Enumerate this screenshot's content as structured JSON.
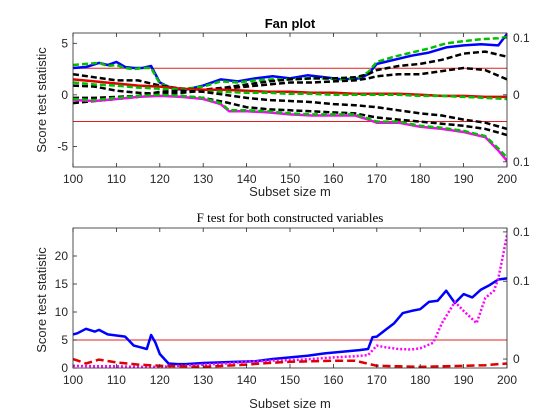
{
  "chart_data": [
    {
      "type": "line",
      "title": "Fan plot",
      "xlabel": "Subset size m",
      "ylabel": "Score test statistic",
      "xlim": [
        100,
        200
      ],
      "ylim": [
        -7,
        6
      ],
      "xticks": [
        100,
        110,
        120,
        130,
        140,
        150,
        160,
        170,
        180,
        190,
        200
      ],
      "yticks": [
        -5,
        0,
        5
      ],
      "grid": false,
      "bands": [
        2.58,
        -2.58
      ],
      "band_color": "#e02020",
      "right_labels": [
        {
          "text": "0.1",
          "y": 5.5
        },
        {
          "text": "0",
          "y": 0
        },
        {
          "text": "0.1",
          "y": -6.5
        }
      ],
      "series": [
        {
          "color": "#0000ff",
          "dash": "",
          "width": 2.5,
          "x": [
            100,
            103,
            106,
            108,
            110,
            112,
            114,
            116,
            118,
            120,
            123,
            126,
            130,
            134,
            138,
            142,
            146,
            150,
            154,
            158,
            162,
            166,
            168,
            170,
            174,
            178,
            182,
            186,
            190,
            194,
            198,
            200
          ],
          "y": [
            2.6,
            2.7,
            3.1,
            2.9,
            3.2,
            2.7,
            2.6,
            2.6,
            2.8,
            1.2,
            0.6,
            0.5,
            0.9,
            1.5,
            1.3,
            1.6,
            1.8,
            1.6,
            1.9,
            1.7,
            1.5,
            1.6,
            2.0,
            3.0,
            3.4,
            3.8,
            4.1,
            4.6,
            4.8,
            4.9,
            4.8,
            5.9
          ]
        },
        {
          "color": "#00c000",
          "dash": "6,3",
          "width": 2.5,
          "x": [
            100,
            103,
            106,
            108,
            110,
            112,
            114,
            116,
            118,
            120,
            123,
            126,
            130,
            134,
            138,
            142,
            146,
            150,
            154,
            158,
            162,
            166,
            168,
            170,
            174,
            178,
            182,
            186,
            190,
            194,
            198,
            200
          ],
          "y": [
            2.9,
            3.0,
            3.1,
            2.8,
            2.9,
            2.6,
            2.5,
            2.6,
            2.6,
            1.1,
            0.7,
            0.6,
            0.8,
            1.3,
            1.2,
            1.4,
            1.5,
            1.5,
            1.6,
            1.6,
            1.5,
            1.7,
            2.2,
            3.2,
            3.7,
            4.1,
            4.5,
            5.0,
            5.2,
            5.4,
            5.5,
            5.6
          ]
        },
        {
          "color": "#000000",
          "dash": "6,3",
          "width": 2.5,
          "x": [
            100,
            105,
            110,
            115,
            120,
            125,
            130,
            135,
            140,
            145,
            150,
            155,
            160,
            165,
            168,
            170,
            175,
            180,
            185,
            190,
            195,
            200
          ],
          "y": [
            2.0,
            1.7,
            1.4,
            1.4,
            0.9,
            0.6,
            0.5,
            0.7,
            1.0,
            1.3,
            1.5,
            1.6,
            1.6,
            1.7,
            2.0,
            2.4,
            2.8,
            3.0,
            3.4,
            4.0,
            4.2,
            3.7
          ]
        },
        {
          "color": "#000000",
          "dash": "6,3",
          "width": 2.5,
          "x": [
            100,
            105,
            110,
            115,
            120,
            125,
            130,
            135,
            140,
            145,
            150,
            155,
            160,
            165,
            168,
            170,
            175,
            180,
            185,
            190,
            195,
            200
          ],
          "y": [
            0.9,
            0.8,
            0.4,
            0.2,
            0.1,
            0.2,
            0.4,
            0.6,
            0.8,
            1.0,
            1.2,
            1.2,
            1.3,
            1.4,
            1.6,
            1.8,
            2.0,
            2.0,
            2.3,
            2.6,
            2.4,
            1.5
          ]
        },
        {
          "color": "#e00000",
          "dash": "",
          "width": 2.5,
          "x": [
            100,
            105,
            110,
            115,
            120,
            125,
            130,
            135,
            140,
            145,
            150,
            155,
            160,
            165,
            170,
            175,
            180,
            185,
            190,
            195,
            200
          ],
          "y": [
            1.5,
            1.3,
            1.1,
            0.9,
            0.8,
            0.6,
            0.5,
            0.5,
            0.4,
            0.3,
            0.3,
            0.2,
            0.2,
            0.1,
            0.1,
            0.1,
            0.0,
            -0.1,
            -0.1,
            -0.2,
            -0.2
          ]
        },
        {
          "color": "#00c000",
          "dash": "6,3",
          "width": 2.5,
          "x": [
            100,
            105,
            110,
            115,
            120,
            125,
            130,
            135,
            140,
            145,
            150,
            155,
            160,
            165,
            170,
            175,
            180,
            185,
            190,
            195,
            200
          ],
          "y": [
            1.2,
            1.0,
            0.9,
            0.7,
            0.6,
            0.5,
            0.3,
            0.3,
            0.2,
            0.2,
            0.1,
            0.1,
            0.0,
            0.0,
            0.0,
            0.0,
            -0.1,
            -0.1,
            -0.2,
            -0.3,
            -0.4
          ]
        },
        {
          "color": "#000000",
          "dash": "6,3",
          "width": 2.5,
          "x": [
            100,
            105,
            110,
            115,
            120,
            125,
            130,
            135,
            140,
            145,
            150,
            155,
            160,
            165,
            170,
            175,
            180,
            185,
            190,
            195,
            200
          ],
          "y": [
            -0.3,
            -0.3,
            -0.2,
            -0.1,
            0.3,
            0.4,
            0.3,
            0.0,
            -0.3,
            -0.5,
            -0.6,
            -0.7,
            -0.9,
            -1.0,
            -1.2,
            -1.5,
            -1.8,
            -2.0,
            -2.4,
            -2.7,
            -3.3
          ]
        },
        {
          "color": "#000000",
          "dash": "6,3",
          "width": 2.5,
          "x": [
            100,
            105,
            110,
            115,
            120,
            125,
            130,
            135,
            140,
            145,
            150,
            155,
            160,
            165,
            170,
            175,
            180,
            185,
            190,
            195,
            200
          ],
          "y": [
            -0.8,
            -0.6,
            -0.4,
            -0.2,
            0.0,
            -0.1,
            -0.3,
            -0.7,
            -1.2,
            -1.4,
            -1.5,
            -1.6,
            -1.7,
            -1.8,
            -2.2,
            -2.4,
            -2.6,
            -2.8,
            -3.0,
            -3.3,
            -3.9
          ]
        },
        {
          "color": "#ff00ff",
          "dash": "",
          "width": 2.5,
          "x": [
            100,
            105,
            110,
            115,
            120,
            125,
            130,
            134,
            136,
            140,
            145,
            150,
            155,
            160,
            165,
            168,
            170,
            175,
            180,
            185,
            190,
            195,
            198,
            200
          ],
          "y": [
            -0.5,
            -0.6,
            -0.4,
            -0.2,
            -0.1,
            -0.2,
            -0.4,
            -0.9,
            -1.6,
            -1.6,
            -1.7,
            -1.9,
            -2.0,
            -2.0,
            -2.0,
            -2.4,
            -2.7,
            -2.7,
            -3.1,
            -3.3,
            -3.6,
            -4.1,
            -5.4,
            -6.4
          ]
        },
        {
          "color": "#00c000",
          "dash": "6,3",
          "width": 2.5,
          "x": [
            100,
            105,
            110,
            115,
            120,
            125,
            130,
            134,
            136,
            140,
            145,
            150,
            155,
            160,
            165,
            168,
            170,
            175,
            180,
            185,
            190,
            195,
            198,
            200
          ],
          "y": [
            -0.4,
            -0.5,
            -0.3,
            -0.1,
            0.0,
            -0.1,
            -0.3,
            -0.8,
            -1.5,
            -1.5,
            -1.6,
            -1.8,
            -1.9,
            -1.9,
            -1.9,
            -2.3,
            -2.6,
            -2.6,
            -3.0,
            -3.2,
            -3.5,
            -4.0,
            -5.2,
            -6.1
          ]
        }
      ]
    },
    {
      "type": "line",
      "title": "F test for both constructed variables",
      "xlabel": "Subset size m",
      "ylabel": "Score test statistic",
      "xlim": [
        100,
        200
      ],
      "ylim": [
        0,
        25
      ],
      "xticks": [
        100,
        110,
        120,
        130,
        140,
        150,
        160,
        170,
        180,
        190,
        200
      ],
      "yticks": [
        0,
        5,
        10,
        15,
        20
      ],
      "grid": false,
      "bands": [
        5.0
      ],
      "band_color": "#e02020",
      "right_labels": [
        {
          "text": "0.1",
          "y": 24.3
        },
        {
          "text": "0.1",
          "y": 15.5
        },
        {
          "text": "0",
          "y": 1.6
        }
      ],
      "series": [
        {
          "color": "#0000ff",
          "dash": "",
          "width": 2.5,
          "x": [
            100,
            101,
            103,
            105,
            106,
            108,
            110,
            112,
            114,
            116,
            117,
            118,
            119,
            120,
            122,
            124,
            126,
            130,
            134,
            138,
            142,
            146,
            150,
            154,
            158,
            162,
            166,
            168,
            169,
            170,
            172,
            174,
            176,
            178,
            180,
            182,
            184,
            186,
            188,
            190,
            192,
            194,
            196,
            198,
            200
          ],
          "y": [
            6.0,
            6.2,
            7.0,
            6.5,
            6.8,
            6.0,
            5.8,
            5.6,
            4.0,
            3.6,
            3.4,
            5.9,
            4.5,
            2.5,
            0.8,
            0.7,
            0.7,
            0.9,
            1.0,
            1.1,
            1.2,
            1.6,
            1.9,
            2.2,
            2.6,
            2.9,
            3.2,
            3.4,
            5.5,
            5.6,
            6.8,
            8.0,
            9.8,
            10.2,
            10.5,
            11.8,
            12.0,
            13.8,
            11.6,
            13.2,
            12.6,
            14.0,
            14.8,
            15.8,
            16.0
          ]
        },
        {
          "color": "#ff00ff",
          "dash": "2,2",
          "width": 2.5,
          "x": [
            100,
            105,
            110,
            115,
            120,
            125,
            130,
            135,
            140,
            145,
            150,
            155,
            160,
            165,
            168,
            170,
            172,
            175,
            178,
            180,
            183,
            185,
            188,
            190,
            193,
            195,
            197,
            198,
            199,
            200
          ],
          "y": [
            0.4,
            0.3,
            0.3,
            0.2,
            0.2,
            0.4,
            0.6,
            0.8,
            1.1,
            1.3,
            1.4,
            1.6,
            1.9,
            2.1,
            2.3,
            4.0,
            3.7,
            3.4,
            3.3,
            3.5,
            4.5,
            8.0,
            11.8,
            10.2,
            8.0,
            12.5,
            13.8,
            16.0,
            19.8,
            23.8
          ]
        },
        {
          "color": "#e00000",
          "dash": "8,4",
          "width": 2.5,
          "x": [
            100,
            103,
            106,
            110,
            115,
            120,
            125,
            130,
            135,
            140,
            145,
            150,
            155,
            160,
            165,
            170,
            175,
            180,
            185,
            190,
            195,
            200
          ],
          "y": [
            1.6,
            0.8,
            1.5,
            1.0,
            0.6,
            0.4,
            0.3,
            0.2,
            0.4,
            0.6,
            0.9,
            1.1,
            1.2,
            1.3,
            1.3,
            0.4,
            0.3,
            0.2,
            0.3,
            0.4,
            0.5,
            0.8
          ]
        }
      ]
    }
  ]
}
